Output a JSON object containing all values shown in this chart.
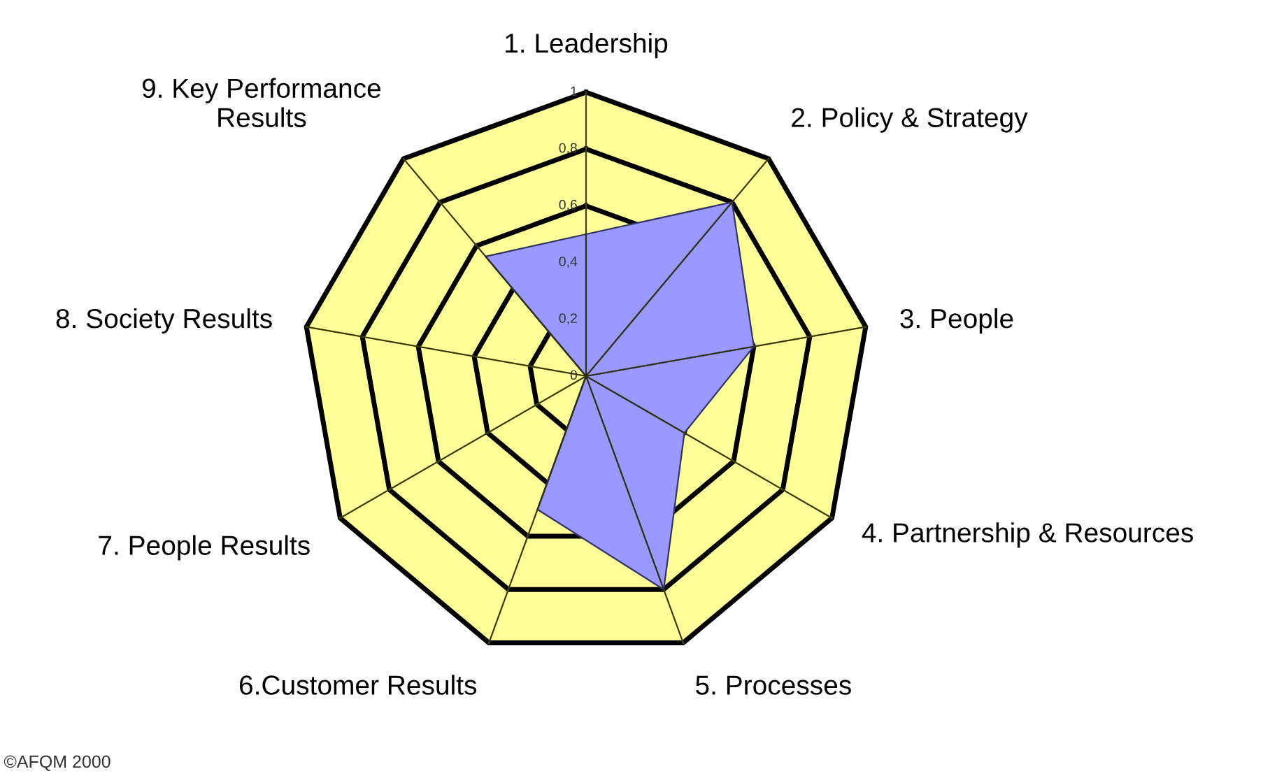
{
  "chart_data": {
    "type": "radar",
    "categories": [
      "1. Leadership",
      "2. Policy & Strategy",
      "3. People",
      "4. Partnership & Resources",
      "5. Processes",
      "6.Customer Results",
      "7. People Results",
      "8. Society Results",
      "9. Key Performance\nResults"
    ],
    "series": [
      {
        "color": "#9999ff",
        "values": [
          0.5,
          0.8,
          0.6,
          0.4,
          0.8,
          0.5,
          0,
          0,
          0.55
        ]
      }
    ],
    "ylim": [
      0,
      1
    ],
    "yticks": [
      {
        "value": 0,
        "label": "0"
      },
      {
        "value": 0.2,
        "label": "0,2"
      },
      {
        "value": 0.4,
        "label": "0,4"
      },
      {
        "value": 0.6,
        "label": "0,6"
      },
      {
        "value": 0.8,
        "label": "0,8"
      },
      {
        "value": 1,
        "label": "1"
      }
    ],
    "grid": true,
    "annotations": [
      "©AFQM 2000"
    ]
  }
}
